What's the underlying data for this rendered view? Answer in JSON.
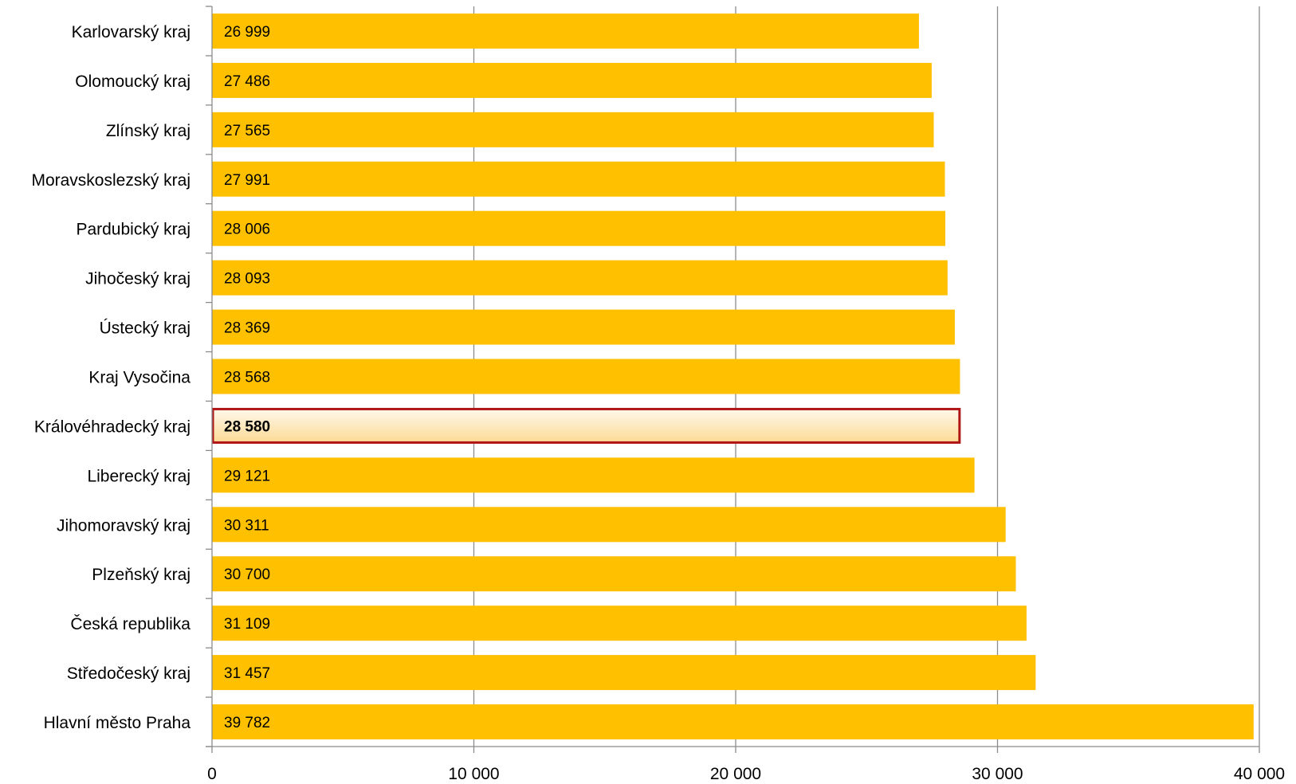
{
  "chart_data": {
    "type": "bar",
    "orientation": "horizontal",
    "title": "",
    "xlabel": "",
    "ylabel": "",
    "xlim": [
      0,
      40000
    ],
    "xticks": [
      0,
      10000,
      20000,
      30000,
      40000
    ],
    "xtick_labels": [
      "0",
      "10 000",
      "20 000",
      "30 000",
      "40 000"
    ],
    "grid": "vertical major gridlines",
    "legend": "none",
    "categories": [
      "Karlovarský kraj",
      "Olomoucký kraj",
      "Zlínský kraj",
      "Moravskoslezský kraj",
      "Pardubický kraj",
      "Jihočeský kraj",
      "Ústecký kraj",
      "Kraj Vysočina",
      "Královéhradecký kraj",
      "Liberecký kraj",
      "Jihomoravský kraj",
      "Plzeňský kraj",
      "Česká republika",
      "Středočeský kraj",
      "Hlavní město Praha"
    ],
    "values": [
      26999,
      27486,
      27565,
      27991,
      28006,
      28093,
      28369,
      28568,
      28580,
      29121,
      30311,
      30700,
      31109,
      31457,
      39782
    ],
    "data_labels": [
      "26 999",
      "27 486",
      "27 565",
      "27 991",
      "28 006",
      "28 093",
      "28 369",
      "28 568",
      "28 580",
      "29 121",
      "30 311",
      "30 700",
      "31 109",
      "31 457",
      "39 782"
    ],
    "highlighted_category": "Královéhradecký kraj",
    "colors": {
      "bar": "#FFC000",
      "highlight_fill_top": "#FEF8EA",
      "highlight_fill_bottom": "#FCDA95",
      "highlight_border": "#B01515",
      "gridline": "#8C8C8C",
      "axis": "#8C8C8C"
    }
  }
}
